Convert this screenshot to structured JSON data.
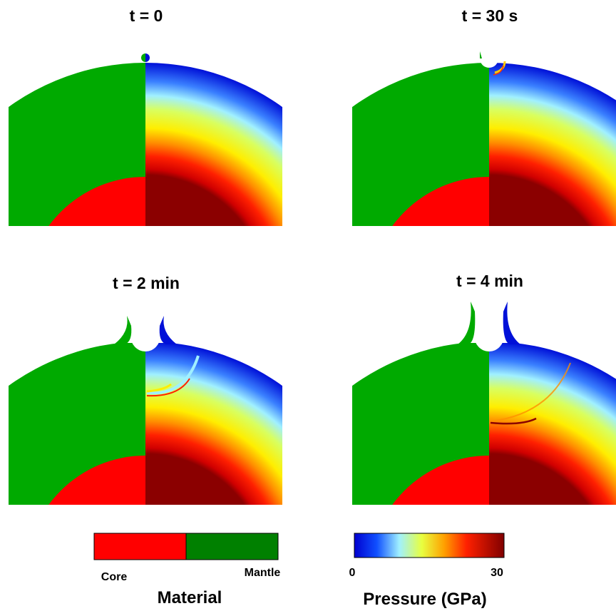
{
  "panels": [
    {
      "title": "t = 0"
    },
    {
      "title": "t = 30 s"
    },
    {
      "title": "t = 2 min"
    },
    {
      "title": "t = 4 min"
    }
  ],
  "material_legend": {
    "title": "Material",
    "labels": [
      "Core",
      "Mantle"
    ]
  },
  "pressure_legend": {
    "title": "Pressure (GPa)",
    "ticks": [
      0,
      30
    ]
  }
}
